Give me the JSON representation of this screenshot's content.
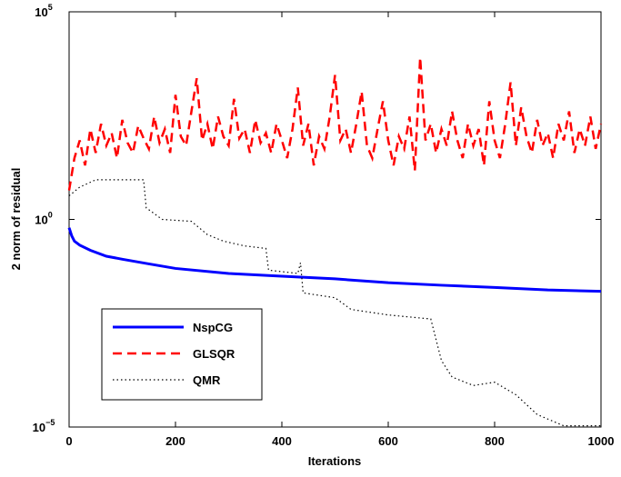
{
  "chart_data": {
    "type": "line",
    "xlabel": "Iterations",
    "ylabel": "2 norm of residual",
    "xlim": [
      0,
      1000
    ],
    "xticks": [
      0,
      200,
      400,
      600,
      800,
      1000
    ],
    "ylim": [
      1e-05,
      100000
    ],
    "yscale": "log",
    "yticks": [
      {
        "value": 1e-05,
        "label": "10",
        "exponent": "−5"
      },
      {
        "value": 1,
        "label": "10",
        "exponent": "0"
      },
      {
        "value": 100000,
        "label": "10",
        "exponent": "5"
      }
    ],
    "legend": "lower left",
    "series": [
      {
        "name": "NspCG",
        "color": "#0000ff",
        "style": "solid",
        "x": [
          0,
          5,
          10,
          20,
          40,
          70,
          100,
          150,
          200,
          300,
          400,
          500,
          600,
          700,
          800,
          900,
          1000
        ],
        "values": [
          0.63,
          0.4,
          0.3,
          0.24,
          0.18,
          0.13,
          0.11,
          0.085,
          0.066,
          0.05,
          0.043,
          0.037,
          0.03,
          0.026,
          0.023,
          0.02,
          0.0186
        ]
      },
      {
        "name": "GLSQR",
        "color": "#ff0000",
        "style": "dashed",
        "x": [
          0,
          10,
          20,
          30,
          40,
          50,
          60,
          70,
          80,
          90,
          100,
          110,
          120,
          130,
          140,
          150,
          160,
          170,
          180,
          190,
          200,
          210,
          220,
          230,
          240,
          250,
          260,
          270,
          280,
          290,
          300,
          310,
          320,
          330,
          340,
          350,
          360,
          370,
          380,
          390,
          400,
          410,
          420,
          430,
          440,
          450,
          460,
          470,
          480,
          490,
          500,
          510,
          520,
          530,
          540,
          550,
          560,
          570,
          580,
          590,
          600,
          610,
          620,
          630,
          640,
          650,
          660,
          670,
          680,
          690,
          700,
          710,
          720,
          730,
          740,
          750,
          760,
          770,
          780,
          790,
          800,
          810,
          820,
          830,
          840,
          850,
          860,
          870,
          880,
          890,
          900,
          910,
          920,
          930,
          940,
          950,
          960,
          970,
          980,
          990,
          1000
        ],
        "values": [
          5,
          30,
          80,
          20,
          150,
          40,
          200,
          60,
          120,
          30,
          250,
          70,
          40,
          180,
          90,
          50,
          300,
          70,
          150,
          40,
          1000,
          100,
          60,
          400,
          2500,
          80,
          200,
          50,
          300,
          100,
          60,
          800,
          90,
          150,
          40,
          250,
          70,
          120,
          40,
          200,
          80,
          30,
          150,
          1500,
          60,
          200,
          20,
          100,
          50,
          300,
          3000,
          80,
          150,
          40,
          200,
          1200,
          60,
          30,
          150,
          700,
          80,
          20,
          100,
          50,
          300,
          15,
          8000,
          80,
          200,
          40,
          150,
          60,
          400,
          80,
          30,
          200,
          60,
          150,
          20,
          700,
          80,
          30,
          200,
          2000,
          60,
          500,
          100,
          40,
          250,
          60,
          120,
          30,
          200,
          80,
          400,
          40,
          150,
          60,
          300,
          50,
          200
        ]
      },
      {
        "name": "QMR",
        "color": "#000000",
        "style": "dotted",
        "x": [
          0,
          20,
          50,
          140,
          145,
          175,
          230,
          260,
          290,
          330,
          370,
          375,
          430,
          435,
          440,
          500,
          530,
          600,
          680,
          700,
          720,
          760,
          800,
          840,
          880,
          930,
          1000
        ],
        "values": [
          3.7,
          6,
          9,
          9,
          1.9,
          1,
          0.9,
          0.43,
          0.3,
          0.23,
          0.2,
          0.06,
          0.05,
          0.09,
          0.017,
          0.013,
          0.0068,
          0.005,
          0.004,
          0.0004,
          0.00016,
          0.0001,
          0.00012,
          6e-05,
          2e-05,
          1.07e-05,
          1.07e-05
        ]
      }
    ]
  }
}
